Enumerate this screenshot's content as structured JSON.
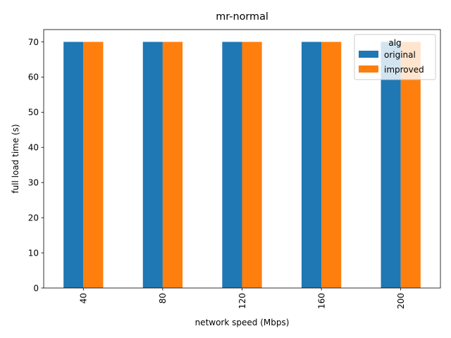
{
  "chart_data": {
    "type": "bar",
    "title": "mr-normal",
    "xlabel": "network speed (Mbps)",
    "ylabel": "full load time (s)",
    "categories": [
      "40",
      "80",
      "120",
      "160",
      "200"
    ],
    "series": [
      {
        "name": "original",
        "color": "#1f77b4",
        "values": [
          70,
          70,
          70,
          70,
          70
        ]
      },
      {
        "name": "improved",
        "color": "#ff7f0e",
        "values": [
          70,
          70,
          70,
          70,
          70
        ]
      }
    ],
    "ylim": [
      0,
      73.5
    ],
    "yticks": [
      0,
      10,
      20,
      30,
      40,
      50,
      60,
      70
    ],
    "xtick_rotation": 90,
    "grid": false,
    "legend": {
      "title": "alg",
      "placement": "top-right"
    }
  }
}
